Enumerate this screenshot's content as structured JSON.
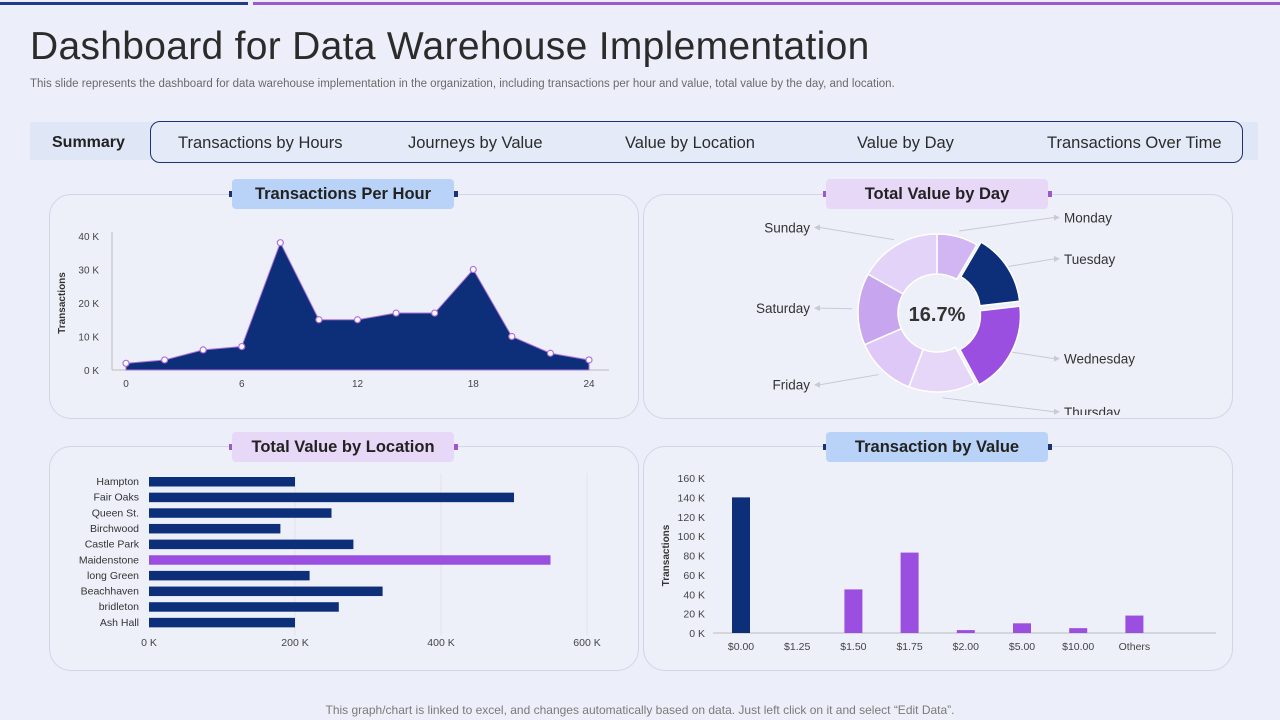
{
  "header": {
    "title": "Dashboard for Data Warehouse Implementation",
    "subtitle": "This slide represents the dashboard for data warehouse implementation in the organization, including transactions per hour and value, total value by the day, and location."
  },
  "nav": {
    "summary": "Summary",
    "tabs": [
      "Transactions by Hours",
      "Journeys by Value",
      "Value by Location",
      "Value by Day",
      "Transactions Over Time"
    ]
  },
  "colors": {
    "navy": "#0d2f7a",
    "purple": "#9b4fe0",
    "accent_bar": "#9b59c9"
  },
  "chart_data": [
    {
      "id": "hourly",
      "type": "area",
      "title": "Transactions Per Hour",
      "xlabel": "",
      "ylabel": "Transactions",
      "x": [
        0,
        2,
        4,
        6,
        8,
        10,
        12,
        14,
        16,
        18,
        20,
        22,
        24
      ],
      "values": [
        2000,
        3000,
        6000,
        7000,
        38000,
        15000,
        15000,
        17000,
        17000,
        30000,
        10000,
        5000,
        3000
      ],
      "xticks": [
        0,
        6,
        12,
        18,
        24
      ],
      "yticks": [
        "0 K",
        "10 K",
        "20 K",
        "30 K",
        "40 K"
      ],
      "ylim": [
        0,
        40000
      ]
    },
    {
      "id": "byday",
      "type": "pie",
      "title": "Total Value by Day",
      "center_label": "16.7%",
      "categories": [
        "Monday",
        "Tuesday",
        "Wednesday",
        "Thursday",
        "Friday",
        "Saturday",
        "Sunday"
      ],
      "values": [
        8,
        14,
        18,
        13,
        12,
        14,
        16
      ],
      "slice_colors": [
        "#d2b5f3",
        "#0d2f7a",
        "#9b4fe0",
        "#e6d7f9",
        "#ddc8f7",
        "#c7a6ef",
        "#e3d3f8"
      ]
    },
    {
      "id": "bylocation",
      "type": "bar",
      "orientation": "horizontal",
      "title": "Total Value by Location",
      "categories": [
        "Hampton",
        "Fair Oaks",
        "Queen St.",
        "Birchwood",
        "Castle Park",
        "Maidenstone",
        "long Green",
        "Beachhaven",
        "bridleton",
        "Ash Hall"
      ],
      "values": [
        200000,
        500000,
        250000,
        180000,
        280000,
        550000,
        220000,
        320000,
        260000,
        200000
      ],
      "highlight_index": 5,
      "xticks": [
        "0 K",
        "200 K",
        "400 K",
        "600 K"
      ],
      "xlim": [
        0,
        600000
      ]
    },
    {
      "id": "byvalue",
      "type": "bar",
      "title": "Transaction by Value",
      "ylabel": "Transactions",
      "categories": [
        "$0.00",
        "$1.25",
        "$1.50",
        "$1.75",
        "$2.00",
        "$5.00",
        "$10.00",
        "Others"
      ],
      "values": [
        140000,
        0,
        45000,
        83000,
        3000,
        10000,
        5000,
        18000
      ],
      "highlight_index": 0,
      "yticks": [
        "0 K",
        "20 K",
        "40 K",
        "60 K",
        "80 K",
        "100 K",
        "120 K",
        "140 K",
        "160 K"
      ],
      "ylim": [
        0,
        160000
      ]
    }
  ],
  "footer": "This graph/chart is linked to excel, and changes automatically based on data. Just left click on it and select “Edit Data”."
}
